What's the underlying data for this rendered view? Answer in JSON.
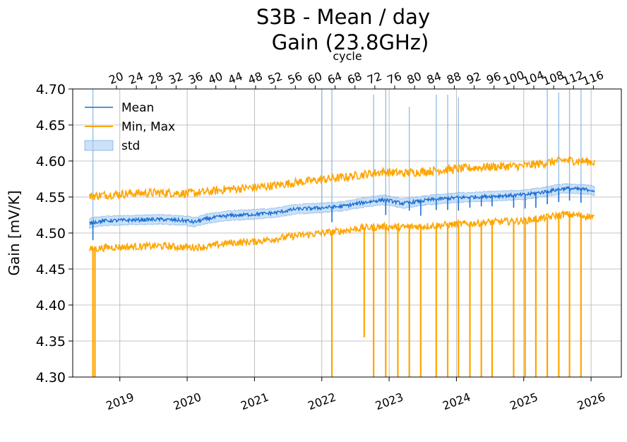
{
  "chart_data": {
    "type": "line",
    "title": "S3B - Mean / day",
    "subtitle": "Gain (23.8GHz)",
    "ylabel": "Gain [mV/K]",
    "top_xlabel": "cycle",
    "ylim": [
      4.3,
      4.7
    ],
    "xlim": [
      2018.3,
      2026.45
    ],
    "y_ticks": [
      "4.30",
      "4.35",
      "4.40",
      "4.45",
      "4.50",
      "4.55",
      "4.60",
      "4.65",
      "4.70"
    ],
    "x_ticks": [
      "2019",
      "2020",
      "2021",
      "2022",
      "2023",
      "2024",
      "2025",
      "2026"
    ],
    "cycle_ticks": [
      "20",
      "24",
      "28",
      "32",
      "36",
      "40",
      "44",
      "48",
      "52",
      "56",
      "60",
      "64",
      "68",
      "72",
      "76",
      "80",
      "84",
      "88",
      "92",
      "96",
      "100",
      "104",
      "108",
      "112",
      "116"
    ],
    "cycle_ref": {
      "cycle": 20,
      "year": 2018.95,
      "cycle_length_years": 0.0738
    },
    "grid": true,
    "legend_position": "top-left",
    "legend": [
      "Mean",
      "Min, Max",
      "std"
    ],
    "colors": {
      "mean": "#1a6fd4",
      "minmax": "#ffa500",
      "std_fill": "#a9cdf2",
      "std_edge": "#7fb0e6",
      "grid": "#b0b0b0"
    },
    "series": [
      {
        "name": "Mean",
        "x": [
          2018.55,
          2018.6,
          2018.8,
          2019.2,
          2019.6,
          2020.0,
          2020.1,
          2020.3,
          2020.6,
          2021.0,
          2021.3,
          2021.6,
          2022.0,
          2022.3,
          2022.6,
          2022.9,
          2023.0,
          2023.2,
          2023.6,
          2024.0,
          2024.5,
          2025.0,
          2025.3,
          2025.6,
          2026.0,
          2026.05
        ],
        "values": [
          4.513,
          4.515,
          4.517,
          4.518,
          4.519,
          4.517,
          4.515,
          4.52,
          4.524,
          4.526,
          4.528,
          4.533,
          4.535,
          4.537,
          4.542,
          4.546,
          4.545,
          4.541,
          4.546,
          4.549,
          4.551,
          4.553,
          4.557,
          4.562,
          4.56,
          4.558
        ]
      },
      {
        "name": "Max",
        "x": [
          2018.55,
          2018.8,
          2019.2,
          2019.6,
          2020.0,
          2020.3,
          2020.6,
          2021.0,
          2021.3,
          2021.6,
          2022.0,
          2022.3,
          2022.6,
          2022.9,
          2023.2,
          2023.6,
          2024.0,
          2024.5,
          2025.0,
          2025.3,
          2025.6,
          2026.0,
          2026.05
        ],
        "values": [
          4.551,
          4.553,
          4.555,
          4.556,
          4.555,
          4.557,
          4.561,
          4.563,
          4.566,
          4.57,
          4.574,
          4.577,
          4.581,
          4.585,
          4.583,
          4.586,
          4.589,
          4.592,
          4.593,
          4.597,
          4.601,
          4.599,
          4.598
        ]
      },
      {
        "name": "Min",
        "x": [
          2018.55,
          2018.8,
          2019.2,
          2019.6,
          2020.0,
          2020.3,
          2020.6,
          2021.0,
          2021.3,
          2021.6,
          2022.0,
          2022.3,
          2022.6,
          2022.9,
          2023.2,
          2023.6,
          2024.0,
          2024.5,
          2025.0,
          2025.3,
          2025.6,
          2026.0,
          2026.05
        ],
        "values": [
          4.477,
          4.48,
          4.481,
          4.482,
          4.48,
          4.481,
          4.486,
          4.488,
          4.492,
          4.496,
          4.5,
          4.503,
          4.507,
          4.509,
          4.508,
          4.51,
          4.512,
          4.515,
          4.517,
          4.521,
          4.526,
          4.523,
          4.521
        ]
      }
    ],
    "std_halfwidth": 0.0065,
    "min_dropouts": [
      {
        "x": 2018.6,
        "y": 4.3
      },
      {
        "x": 2018.63,
        "y": 4.3
      },
      {
        "x": 2022.15,
        "y": 4.3
      },
      {
        "x": 2022.63,
        "y": 4.355
      },
      {
        "x": 2022.77,
        "y": 4.3
      },
      {
        "x": 2022.95,
        "y": 4.3
      },
      {
        "x": 2023.13,
        "y": 4.3
      },
      {
        "x": 2023.3,
        "y": 4.3
      },
      {
        "x": 2023.47,
        "y": 4.3
      },
      {
        "x": 2023.7,
        "y": 4.3
      },
      {
        "x": 2023.87,
        "y": 4.3
      },
      {
        "x": 2024.03,
        "y": 4.3
      },
      {
        "x": 2024.2,
        "y": 4.3
      },
      {
        "x": 2024.37,
        "y": 4.3
      },
      {
        "x": 2024.53,
        "y": 4.3
      },
      {
        "x": 2024.85,
        "y": 4.3
      },
      {
        "x": 2025.02,
        "y": 4.3
      },
      {
        "x": 2025.18,
        "y": 4.3
      },
      {
        "x": 2025.35,
        "y": 4.3
      },
      {
        "x": 2025.52,
        "y": 4.3
      },
      {
        "x": 2025.68,
        "y": 4.3
      },
      {
        "x": 2025.85,
        "y": 4.3
      }
    ],
    "std_spikes": [
      {
        "x": 2018.6,
        "y": 4.7
      },
      {
        "x": 2022.0,
        "y": 4.7
      },
      {
        "x": 2022.15,
        "y": 4.7
      },
      {
        "x": 2022.77,
        "y": 4.692
      },
      {
        "x": 2022.95,
        "y": 4.7
      },
      {
        "x": 2023.3,
        "y": 4.675
      },
      {
        "x": 2023.7,
        "y": 4.692
      },
      {
        "x": 2023.87,
        "y": 4.692
      },
      {
        "x": 2024.03,
        "y": 4.688
      },
      {
        "x": 2025.35,
        "y": 4.7
      },
      {
        "x": 2025.52,
        "y": 4.695
      },
      {
        "x": 2025.68,
        "y": 4.7
      },
      {
        "x": 2025.85,
        "y": 4.7
      }
    ],
    "mean_dips": [
      {
        "x": 2018.6,
        "y": 4.49
      },
      {
        "x": 2022.15,
        "y": 4.515
      },
      {
        "x": 2022.95,
        "y": 4.525
      },
      {
        "x": 2023.3,
        "y": 4.531
      },
      {
        "x": 2023.47,
        "y": 4.524
      },
      {
        "x": 2023.7,
        "y": 4.532
      },
      {
        "x": 2023.87,
        "y": 4.532
      },
      {
        "x": 2024.03,
        "y": 4.531
      },
      {
        "x": 2024.2,
        "y": 4.535
      },
      {
        "x": 2024.37,
        "y": 4.537
      },
      {
        "x": 2024.53,
        "y": 4.537
      },
      {
        "x": 2024.85,
        "y": 4.535
      },
      {
        "x": 2025.02,
        "y": 4.534
      },
      {
        "x": 2025.18,
        "y": 4.535
      },
      {
        "x": 2025.35,
        "y": 4.54
      },
      {
        "x": 2025.52,
        "y": 4.543
      },
      {
        "x": 2025.68,
        "y": 4.545
      },
      {
        "x": 2025.85,
        "y": 4.542
      }
    ],
    "noise": {
      "mean": 0.0025,
      "max": 0.006,
      "min": 0.005
    }
  }
}
